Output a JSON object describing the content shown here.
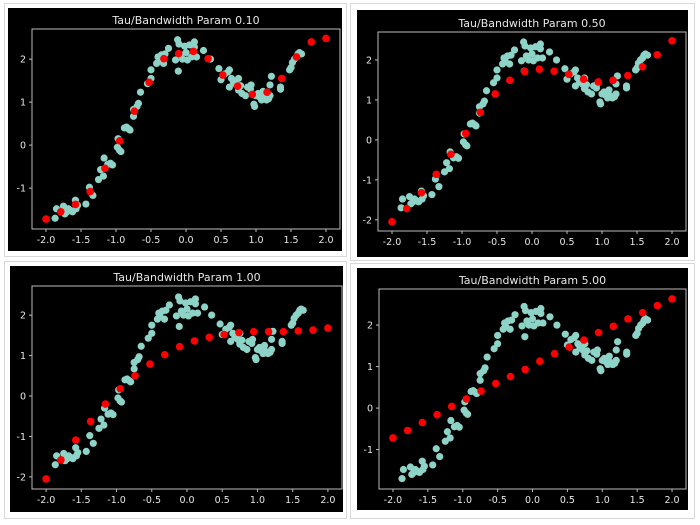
{
  "colors": {
    "background": "#000000",
    "training_points": "#8dd3c7",
    "predictions": "#ff0000",
    "axes": "#bbbbbb",
    "text": "#e6e6e6"
  },
  "training_data": {
    "x": [
      -1.87,
      -1.85,
      -1.75,
      -1.73,
      -1.7,
      -1.68,
      -1.65,
      -1.62,
      -1.58,
      -1.57,
      -1.55,
      -1.43,
      -1.38,
      -1.33,
      -1.25,
      -1.22,
      -1.18,
      -1.17,
      -1.12,
      -1.08,
      -1.05,
      -0.98,
      -0.97,
      -0.95,
      -0.93,
      -0.88,
      -0.85,
      -0.82,
      -0.8,
      -0.75,
      -0.75,
      -0.7,
      -0.68,
      -0.65,
      -0.55,
      -0.5,
      -0.5,
      -0.42,
      -0.4,
      -0.38,
      -0.35,
      -0.32,
      -0.3,
      -0.25,
      -0.15,
      -0.12,
      -0.11,
      -0.1,
      -0.08,
      -0.05,
      -0.02,
      0.0,
      0.02,
      0.05,
      0.08,
      0.12,
      0.12,
      0.15,
      0.25,
      0.35,
      0.47,
      0.5,
      0.55,
      0.6,
      0.62,
      0.62,
      0.65,
      0.68,
      0.72,
      0.75,
      0.75,
      0.78,
      0.8,
      0.85,
      0.88,
      0.92,
      0.93,
      0.97,
      0.98,
      1.0,
      1.03,
      1.05,
      1.08,
      1.1,
      1.12,
      1.15,
      1.18,
      1.2,
      1.2,
      1.22,
      1.35,
      1.35,
      1.48,
      1.5,
      1.52,
      1.55,
      1.58,
      1.6,
      1.62,
      1.65
    ],
    "y": [
      -1.7,
      -1.48,
      -1.42,
      -1.6,
      -1.55,
      -1.48,
      -1.52,
      -1.55,
      -1.28,
      -1.48,
      -1.4,
      -1.37,
      -0.98,
      -1.17,
      -0.8,
      -0.57,
      -0.72,
      -0.3,
      -0.45,
      -0.42,
      -0.46,
      -0.05,
      0.15,
      -0.12,
      -0.15,
      0.4,
      0.42,
      0.38,
      0.35,
      0.67,
      0.83,
      0.9,
      0.97,
      1.23,
      1.43,
      1.55,
      1.75,
      1.9,
      2.05,
      1.95,
      2.1,
      1.9,
      2.12,
      2.25,
      1.98,
      2.45,
      1.72,
      2.35,
      2.1,
      2.0,
      2.3,
      2.15,
      1.98,
      2.33,
      2.05,
      2.4,
      2.28,
      2.05,
      2.2,
      2.0,
      1.78,
      1.52,
      1.65,
      1.7,
      1.75,
      1.35,
      1.55,
      1.45,
      1.4,
      1.55,
      1.28,
      1.38,
      1.2,
      1.15,
      1.35,
      1.3,
      1.4,
      0.95,
      0.9,
      1.15,
      1.2,
      1.12,
      1.05,
      1.25,
      1.1,
      1.05,
      1.08,
      1.15,
      1.4,
      1.6,
      1.35,
      1.3,
      1.75,
      1.8,
      1.92,
      2.0,
      2.05,
      2.12,
      2.15,
      2.12
    ]
  },
  "chart_data": [
    {
      "type": "scatter",
      "title": "Tau/Bandwidth Param 0.10",
      "xlim": [
        -2.2,
        2.2
      ],
      "ylim": [
        -1.95,
        2.7
      ],
      "xticks": [
        "-2.0",
        "-1.5",
        "-1.0",
        "-0.5",
        "0.0",
        "0.5",
        "1.0",
        "1.5",
        "2.0"
      ],
      "yticks": [
        "-1",
        "0",
        "1",
        "2"
      ],
      "predictions": {
        "x": [
          -2.0,
          -1.789,
          -1.579,
          -1.368,
          -1.158,
          -0.947,
          -0.737,
          -0.526,
          -0.316,
          -0.105,
          0.105,
          0.316,
          0.526,
          0.737,
          0.947,
          1.158,
          1.368,
          1.579,
          1.789,
          2.0
        ],
        "y": [
          -1.72,
          -1.55,
          -1.38,
          -1.08,
          -0.54,
          0.1,
          0.79,
          1.46,
          2.01,
          2.13,
          2.18,
          2.01,
          1.63,
          1.37,
          1.18,
          1.23,
          1.55,
          2.05,
          2.4,
          2.48
        ]
      }
    },
    {
      "type": "scatter",
      "title": "Tau/Bandwidth Param 0.50",
      "xlim": [
        -2.2,
        2.2
      ],
      "ylim": [
        -2.28,
        2.7
      ],
      "xticks": [
        "-2.0",
        "-1.5",
        "-1.0",
        "-0.5",
        "0.0",
        "0.5",
        "1.0",
        "1.5",
        "2.0"
      ],
      "yticks": [
        "-2",
        "-1",
        "0",
        "1",
        "2"
      ],
      "predictions": {
        "x": [
          -2.0,
          -1.789,
          -1.579,
          -1.368,
          -1.158,
          -0.947,
          -0.737,
          -0.526,
          -0.316,
          -0.105,
          0.105,
          0.316,
          0.526,
          0.737,
          0.947,
          1.158,
          1.368,
          1.579,
          1.789,
          2.0
        ],
        "y": [
          -2.05,
          -1.72,
          -1.32,
          -0.86,
          -0.36,
          0.16,
          0.69,
          1.15,
          1.49,
          1.71,
          1.77,
          1.72,
          1.64,
          1.52,
          1.45,
          1.49,
          1.61,
          1.83,
          2.13,
          2.48
        ]
      }
    },
    {
      "type": "scatter",
      "title": "Tau/Bandwidth Param 1.00",
      "xlim": [
        -2.2,
        2.2
      ],
      "ylim": [
        -2.3,
        2.72
      ],
      "xticks": [
        "-2.0",
        "-1.5",
        "-1.0",
        "-0.5",
        "0.0",
        "0.5",
        "1.0",
        "1.5",
        "2.0"
      ],
      "yticks": [
        "-2",
        "-1",
        "0",
        "1",
        "2"
      ],
      "predictions": {
        "x": [
          -2.0,
          -1.789,
          -1.579,
          -1.368,
          -1.158,
          -0.947,
          -0.737,
          -0.526,
          -0.316,
          -0.105,
          0.105,
          0.316,
          0.526,
          0.737,
          0.947,
          1.158,
          1.368,
          1.579,
          1.789,
          2.0
        ],
        "y": [
          -2.05,
          -1.58,
          -1.09,
          -0.63,
          -0.2,
          0.18,
          0.5,
          0.79,
          1.02,
          1.22,
          1.36,
          1.45,
          1.52,
          1.57,
          1.59,
          1.59,
          1.59,
          1.61,
          1.63,
          1.68
        ]
      }
    },
    {
      "type": "scatter",
      "title": "Tau/Bandwidth Param 5.00",
      "xlim": [
        -2.2,
        2.2
      ],
      "ylim": [
        -1.95,
        2.87
      ],
      "xticks": [
        "-2.0",
        "-1.5",
        "-1.0",
        "-0.5",
        "0.0",
        "0.5",
        "1.0",
        "1.5",
        "2.0"
      ],
      "yticks": [
        "-1",
        "0",
        "1",
        "2"
      ],
      "predictions": {
        "x": [
          -2.0,
          -1.789,
          -1.579,
          -1.368,
          -1.158,
          -0.947,
          -0.737,
          -0.526,
          -0.316,
          -0.105,
          0.105,
          0.316,
          0.526,
          0.737,
          0.947,
          1.158,
          1.368,
          1.579,
          1.789,
          2.0
        ],
        "y": [
          -0.72,
          -0.54,
          -0.35,
          -0.16,
          0.04,
          0.22,
          0.41,
          0.59,
          0.76,
          0.93,
          1.13,
          1.31,
          1.47,
          1.64,
          1.82,
          1.97,
          2.15,
          2.3,
          2.47,
          2.63
        ]
      }
    }
  ]
}
